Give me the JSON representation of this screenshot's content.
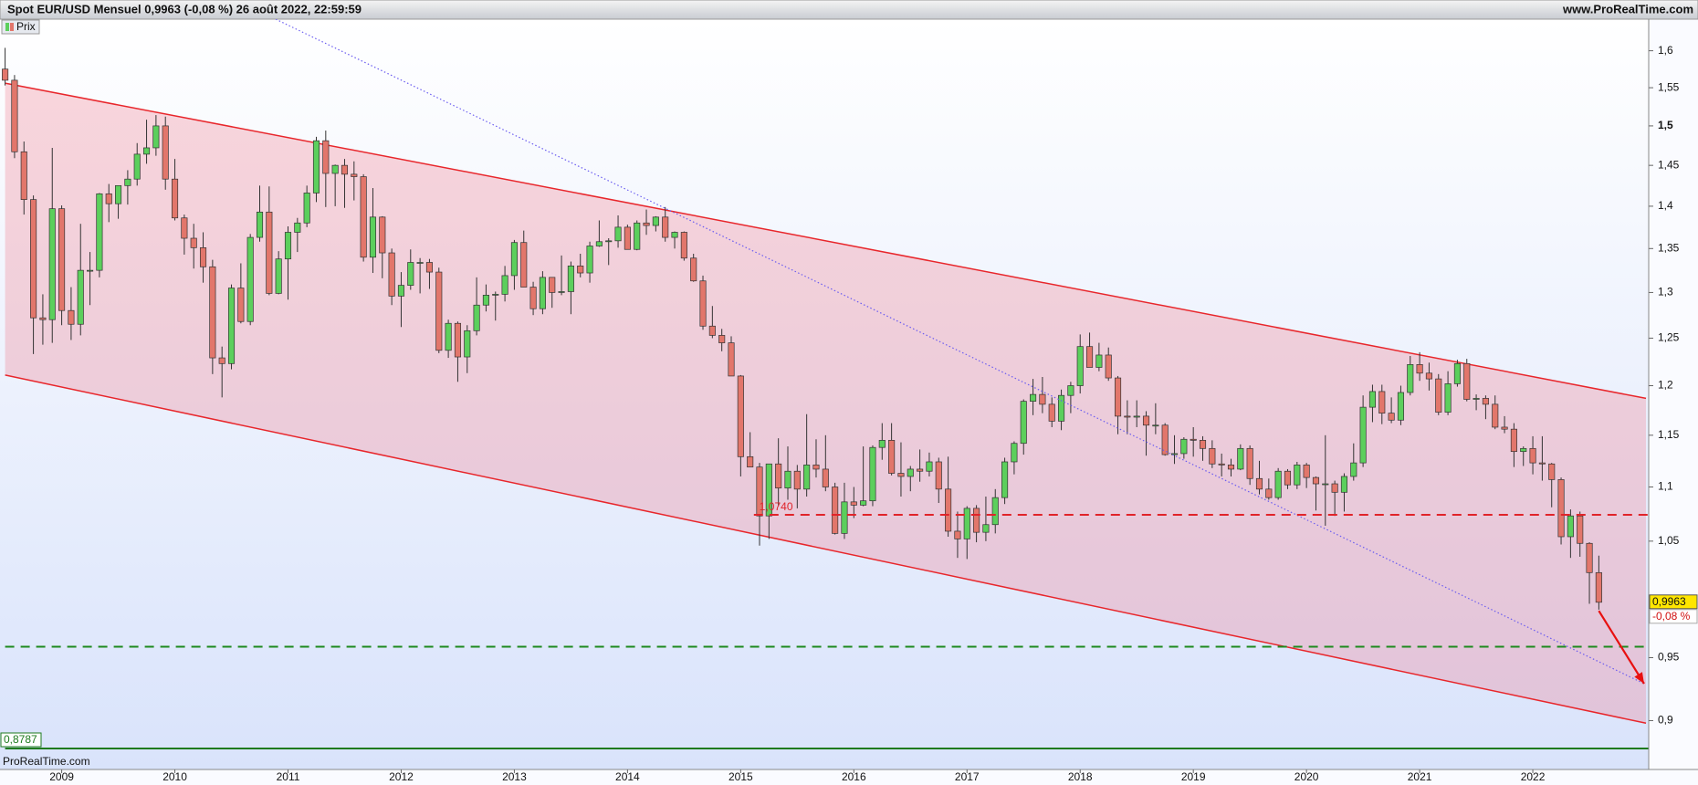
{
  "chart_data": {
    "type": "candlestick",
    "title": "Spot EUR/USD Mensuel 0,9963 (-0,08 %) 26 août 2022, 22:59:59",
    "site": "www.ProRealTime.com",
    "watermark": "ProRealTime.com",
    "log_y": true,
    "ylim": [
      0.863,
      1.644
    ],
    "yticks": [
      {
        "value": 0.9,
        "label": "0,9"
      },
      {
        "value": 0.95,
        "label": "0,95"
      },
      {
        "value": 1.05,
        "label": "1,05"
      },
      {
        "value": 1.1,
        "label": "1,1"
      },
      {
        "value": 1.15,
        "label": "1,15"
      },
      {
        "value": 1.2,
        "label": "1,2"
      },
      {
        "value": 1.25,
        "label": "1,25"
      },
      {
        "value": 1.3,
        "label": "1,3"
      },
      {
        "value": 1.35,
        "label": "1,35"
      },
      {
        "value": 1.4,
        "label": "1,4"
      },
      {
        "value": 1.45,
        "label": "1,45"
      },
      {
        "value": 1.5,
        "label": "1,5"
      },
      {
        "value": 1.55,
        "label": "1,55"
      },
      {
        "value": 1.6,
        "label": "1,6"
      }
    ],
    "bold_ytick": 1.5,
    "categories": [
      null,
      null,
      null,
      null,
      null,
      null,
      "2009",
      null,
      null,
      null,
      null,
      null,
      null,
      null,
      null,
      null,
      null,
      null,
      "2010",
      null,
      null,
      null,
      null,
      null,
      null,
      null,
      null,
      null,
      null,
      null,
      "2011",
      null,
      null,
      null,
      null,
      null,
      null,
      null,
      null,
      null,
      null,
      null,
      "2012",
      null,
      null,
      null,
      null,
      null,
      null,
      null,
      null,
      null,
      null,
      null,
      "2013",
      null,
      null,
      null,
      null,
      null,
      null,
      null,
      null,
      null,
      null,
      null,
      "2014",
      null,
      null,
      null,
      null,
      null,
      null,
      null,
      null,
      null,
      null,
      null,
      "2015",
      null,
      null,
      null,
      null,
      null,
      null,
      null,
      null,
      null,
      null,
      null,
      "2016",
      null,
      null,
      null,
      null,
      null,
      null,
      null,
      null,
      null,
      null,
      null,
      "2017",
      null,
      null,
      null,
      null,
      null,
      null,
      null,
      null,
      null,
      null,
      null,
      "2018",
      null,
      null,
      null,
      null,
      null,
      null,
      null,
      null,
      null,
      null,
      null,
      "2019",
      null,
      null,
      null,
      null,
      null,
      null,
      null,
      null,
      null,
      null,
      null,
      "2020",
      null,
      null,
      null,
      null,
      null,
      null,
      null,
      null,
      null,
      null,
      null,
      "2021",
      null,
      null,
      null,
      null,
      null,
      null,
      null,
      null,
      null,
      null,
      null,
      "2022",
      null,
      null,
      null,
      null,
      null,
      null,
      null
    ],
    "series": [
      {
        "name": "Prix",
        "up_color": "#5ccf5c",
        "down_color": "#e2766b",
        "open": [
          1.575,
          1.56,
          1.467,
          1.408,
          1.272,
          1.27,
          1.397,
          1.28,
          1.265,
          1.325,
          1.325,
          1.415,
          1.403,
          1.425,
          1.433,
          1.464,
          1.472,
          1.5,
          1.433,
          1.386,
          1.362,
          1.351,
          1.329,
          1.229,
          1.223,
          1.305,
          1.268,
          1.363,
          1.393,
          1.299,
          1.338,
          1.369,
          1.38,
          1.416,
          1.481,
          1.44,
          1.45,
          1.439,
          1.436,
          1.34,
          1.387,
          1.345,
          1.296,
          1.308,
          1.334,
          1.334,
          1.323,
          1.237,
          1.266,
          1.23,
          1.258,
          1.286,
          1.297,
          1.298,
          1.319,
          1.357,
          1.306,
          1.282,
          1.317,
          1.3,
          1.301,
          1.33,
          1.322,
          1.353,
          1.358,
          1.359,
          1.375,
          1.349,
          1.38,
          1.377,
          1.387,
          1.363,
          1.369,
          1.339,
          1.313,
          1.263,
          1.253,
          1.245,
          1.21,
          1.129,
          1.119,
          1.073,
          1.122,
          1.099,
          1.115,
          1.098,
          1.121,
          1.117,
          1.1,
          1.057,
          1.086,
          1.083,
          1.087,
          1.138,
          1.145,
          1.113,
          1.11,
          1.117,
          1.115,
          1.124,
          1.098,
          1.059,
          1.052,
          1.08,
          1.058,
          1.065,
          1.09,
          1.124,
          1.142,
          1.184,
          1.191,
          1.181,
          1.164,
          1.19,
          1.2,
          1.241,
          1.219,
          1.232,
          1.208,
          1.169,
          1.168,
          1.169,
          1.16,
          1.16,
          1.131,
          1.132,
          1.146,
          1.145,
          1.137,
          1.122,
          1.121,
          1.117,
          1.137,
          1.108,
          1.098,
          1.09,
          1.115,
          1.102,
          1.121,
          1.109,
          1.103,
          1.103,
          1.095,
          1.11,
          1.123,
          1.178,
          1.194,
          1.172,
          1.165,
          1.193,
          1.222,
          1.213,
          1.207,
          1.173,
          1.202,
          1.223,
          1.186,
          1.187,
          1.181,
          1.158,
          1.156,
          1.134,
          1.137,
          1.123,
          1.122,
          1.107,
          1.054,
          1.073,
          1.048,
          1.022
        ],
        "high": [
          1.604,
          1.567,
          1.48,
          1.413,
          1.298,
          1.472,
          1.401,
          1.306,
          1.379,
          1.346,
          1.416,
          1.427,
          1.425,
          1.444,
          1.478,
          1.508,
          1.514,
          1.512,
          1.458,
          1.39,
          1.379,
          1.369,
          1.337,
          1.241,
          1.309,
          1.333,
          1.367,
          1.425,
          1.424,
          1.347,
          1.376,
          1.386,
          1.425,
          1.486,
          1.494,
          1.451,
          1.458,
          1.455,
          1.439,
          1.422,
          1.388,
          1.35,
          1.323,
          1.349,
          1.339,
          1.338,
          1.328,
          1.27,
          1.268,
          1.264,
          1.317,
          1.309,
          1.301,
          1.33,
          1.36,
          1.371,
          1.312,
          1.324,
          1.317,
          1.342,
          1.335,
          1.344,
          1.358,
          1.383,
          1.362,
          1.389,
          1.378,
          1.383,
          1.396,
          1.388,
          1.399,
          1.37,
          1.37,
          1.344,
          1.319,
          1.285,
          1.26,
          1.252,
          1.211,
          1.153,
          1.123,
          1.122,
          1.147,
          1.139,
          1.121,
          1.171,
          1.146,
          1.15,
          1.104,
          1.104,
          1.1,
          1.139,
          1.14,
          1.162,
          1.162,
          1.143,
          1.12,
          1.136,
          1.133,
          1.128,
          1.129,
          1.077,
          1.082,
          1.083,
          1.091,
          1.098,
          1.128,
          1.144,
          1.186,
          1.207,
          1.209,
          1.188,
          1.196,
          1.204,
          1.254,
          1.256,
          1.245,
          1.24,
          1.21,
          1.185,
          1.185,
          1.174,
          1.182,
          1.162,
          1.15,
          1.148,
          1.158,
          1.149,
          1.145,
          1.132,
          1.127,
          1.141,
          1.14,
          1.125,
          1.108,
          1.118,
          1.117,
          1.124,
          1.123,
          1.11,
          1.15,
          1.106,
          1.113,
          1.142,
          1.19,
          1.201,
          1.201,
          1.188,
          1.2,
          1.231,
          1.235,
          1.224,
          1.212,
          1.215,
          1.227,
          1.228,
          1.191,
          1.19,
          1.19,
          1.169,
          1.162,
          1.139,
          1.149,
          1.149,
          1.123,
          1.109,
          1.079,
          1.077,
          1.049,
          1.037
        ],
        "low": [
          1.553,
          1.459,
          1.39,
          1.233,
          1.243,
          1.245,
          1.264,
          1.248,
          1.253,
          1.286,
          1.317,
          1.381,
          1.385,
          1.402,
          1.425,
          1.452,
          1.462,
          1.42,
          1.383,
          1.343,
          1.327,
          1.311,
          1.212,
          1.188,
          1.217,
          1.266,
          1.264,
          1.358,
          1.297,
          1.298,
          1.292,
          1.346,
          1.375,
          1.405,
          1.399,
          1.4,
          1.398,
          1.407,
          1.335,
          1.322,
          1.316,
          1.286,
          1.262,
          1.303,
          1.299,
          1.304,
          1.234,
          1.229,
          1.204,
          1.213,
          1.253,
          1.279,
          1.269,
          1.29,
          1.303,
          1.306,
          1.275,
          1.276,
          1.283,
          1.297,
          1.276,
          1.317,
          1.311,
          1.352,
          1.331,
          1.351,
          1.349,
          1.348,
          1.366,
          1.37,
          1.358,
          1.35,
          1.336,
          1.312,
          1.259,
          1.25,
          1.236,
          1.21,
          1.11,
          1.119,
          1.046,
          1.052,
          1.082,
          1.088,
          1.08,
          1.091,
          1.109,
          1.096,
          1.056,
          1.052,
          1.071,
          1.082,
          1.082,
          1.126,
          1.111,
          1.091,
          1.096,
          1.105,
          1.11,
          1.085,
          1.054,
          1.035,
          1.034,
          1.049,
          1.05,
          1.057,
          1.084,
          1.112,
          1.131,
          1.17,
          1.172,
          1.158,
          1.155,
          1.172,
          1.192,
          1.219,
          1.215,
          1.205,
          1.151,
          1.151,
          1.158,
          1.13,
          1.151,
          1.13,
          1.122,
          1.127,
          1.129,
          1.125,
          1.118,
          1.11,
          1.11,
          1.116,
          1.102,
          1.093,
          1.088,
          1.088,
          1.098,
          1.098,
          1.099,
          1.078,
          1.064,
          1.073,
          1.077,
          1.106,
          1.119,
          1.163,
          1.161,
          1.162,
          1.16,
          1.19,
          1.205,
          1.195,
          1.17,
          1.17,
          1.199,
          1.184,
          1.175,
          1.166,
          1.156,
          1.152,
          1.119,
          1.12,
          1.112,
          1.106,
          1.081,
          1.047,
          1.035,
          1.036,
          0.995,
          0.99
        ],
        "close": [
          1.56,
          1.467,
          1.408,
          1.272,
          1.27,
          1.397,
          1.28,
          1.265,
          1.325,
          1.325,
          1.415,
          1.403,
          1.425,
          1.433,
          1.464,
          1.472,
          1.5,
          1.433,
          1.386,
          1.362,
          1.351,
          1.329,
          1.229,
          1.223,
          1.305,
          1.268,
          1.363,
          1.393,
          1.299,
          1.338,
          1.369,
          1.38,
          1.416,
          1.481,
          1.44,
          1.45,
          1.439,
          1.436,
          1.34,
          1.387,
          1.345,
          1.296,
          1.308,
          1.334,
          1.334,
          1.323,
          1.237,
          1.266,
          1.23,
          1.258,
          1.286,
          1.297,
          1.298,
          1.319,
          1.357,
          1.306,
          1.282,
          1.317,
          1.3,
          1.301,
          1.33,
          1.322,
          1.353,
          1.358,
          1.359,
          1.375,
          1.349,
          1.38,
          1.377,
          1.387,
          1.363,
          1.369,
          1.339,
          1.313,
          1.263,
          1.253,
          1.245,
          1.21,
          1.129,
          1.119,
          1.073,
          1.122,
          1.099,
          1.115,
          1.098,
          1.121,
          1.117,
          1.1,
          1.057,
          1.086,
          1.083,
          1.087,
          1.138,
          1.145,
          1.113,
          1.11,
          1.117,
          1.115,
          1.124,
          1.098,
          1.059,
          1.052,
          1.08,
          1.058,
          1.065,
          1.09,
          1.124,
          1.142,
          1.184,
          1.191,
          1.181,
          1.164,
          1.19,
          1.2,
          1.241,
          1.219,
          1.232,
          1.208,
          1.169,
          1.168,
          1.169,
          1.16,
          1.16,
          1.131,
          1.132,
          1.146,
          1.145,
          1.137,
          1.122,
          1.121,
          1.117,
          1.137,
          1.108,
          1.098,
          1.09,
          1.115,
          1.102,
          1.121,
          1.109,
          1.103,
          1.103,
          1.095,
          1.11,
          1.123,
          1.178,
          1.194,
          1.172,
          1.165,
          1.193,
          1.222,
          1.213,
          1.207,
          1.173,
          1.202,
          1.223,
          1.186,
          1.187,
          1.181,
          1.158,
          1.156,
          1.134,
          1.137,
          1.123,
          1.122,
          1.107,
          1.054,
          1.073,
          1.048,
          1.022,
          0.9963
        ]
      }
    ],
    "last_value": {
      "value": 0.9963,
      "label": "0,9963"
    },
    "change_label": "-0,08 %",
    "channel": {
      "x": [
        0,
        174
      ],
      "upper": [
        1.556,
        1.187
      ],
      "lower": [
        1.211,
        0.898
      ],
      "color": "#e8262b",
      "fill": "rgba(240,110,130,0.28)"
    },
    "trendline": {
      "x": [
        28.7,
        173.8
      ],
      "y": [
        1.644,
        0.929
      ],
      "color": "#6a5cf0"
    },
    "arrow": {
      "x": [
        169,
        173.8
      ],
      "y": [
        0.989,
        0.929
      ],
      "color": "#e81010"
    },
    "levels": [
      {
        "value": 1.074,
        "label": "1,0740",
        "x_start": 79.4,
        "color": "#e0242a",
        "dash": true
      },
      {
        "value": 0.959,
        "x_start": 0,
        "color": "#1e8a1e",
        "dash": true
      },
      {
        "value": 0.8787,
        "label": "0,8787",
        "x_start": 0,
        "color": "#1e7a1e",
        "dash": false
      }
    ]
  }
}
